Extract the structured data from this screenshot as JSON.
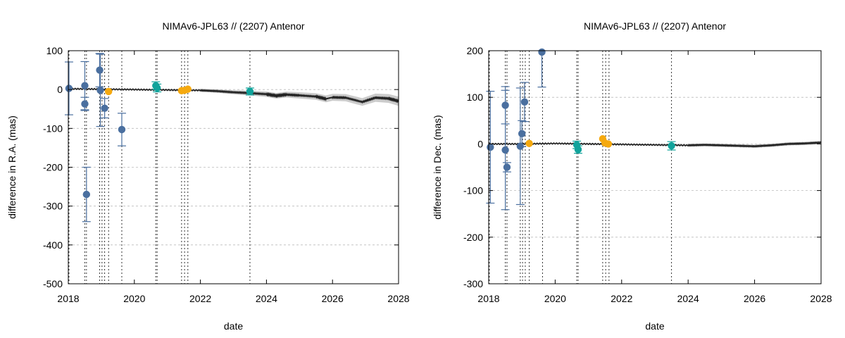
{
  "colors": {
    "blue": "#4a6f9f",
    "teal": "#10a39b",
    "orange": "#f5a90f",
    "model_line": "#222222",
    "uncertainty_band": "#cccccc",
    "grid": "#bbbbbb",
    "vline": "#333333"
  },
  "chart_data": [
    {
      "type": "scatter",
      "title": "NIMAv6-JPL63 // (2207) Antenor",
      "xlabel": "date",
      "ylabel": "difference in R.A. (mas)",
      "xlim": [
        2018,
        2028
      ],
      "ylim": [
        -500,
        100
      ],
      "xticks": [
        2018,
        2020,
        2022,
        2024,
        2026,
        2028
      ],
      "yticks": [
        -500,
        -400,
        -300,
        -200,
        -100,
        0,
        100
      ],
      "grid": "horizontal dashed",
      "observation_dates": [
        2018.02,
        2018.5,
        2018.55,
        2018.95,
        2019.02,
        2019.1,
        2019.22,
        2019.62,
        2020.65,
        2020.69,
        2021.43,
        2021.52,
        2021.62,
        2023.5
      ],
      "series": [
        {
          "color": "blue",
          "points": [
            {
              "x": 2018.02,
              "y": 3,
              "err": 68
            },
            {
              "x": 2018.5,
              "y": 10,
              "err": 62
            },
            {
              "x": 2018.5,
              "y": -37,
              "err": 17
            },
            {
              "x": 2018.55,
              "y": -270,
              "err": 70
            },
            {
              "x": 2018.95,
              "y": 50,
              "err": 43
            },
            {
              "x": 2018.97,
              "y": -2,
              "err": 93
            },
            {
              "x": 2019.1,
              "y": -48,
              "err": 25
            },
            {
              "x": 2019.62,
              "y": -103,
              "err": 42
            }
          ]
        },
        {
          "color": "teal",
          "points": [
            {
              "x": 2020.65,
              "y": 10,
              "err": 10
            },
            {
              "x": 2020.69,
              "y": 4,
              "err": 10
            },
            {
              "x": 2023.5,
              "y": -5,
              "err": 9
            }
          ]
        },
        {
          "color": "orange",
          "points": [
            {
              "x": 2019.22,
              "y": -5,
              "err": 0
            },
            {
              "x": 2021.43,
              "y": -3,
              "err": 0
            },
            {
              "x": 2021.52,
              "y": -2,
              "err": 0
            },
            {
              "x": 2021.62,
              "y": 1,
              "err": 0
            }
          ]
        }
      ],
      "model_curve": [
        [
          2018,
          2
        ],
        [
          2019,
          1
        ],
        [
          2020,
          0
        ],
        [
          2021,
          -1
        ],
        [
          2022,
          -2
        ],
        [
          2022.5,
          -4
        ],
        [
          2023,
          -7
        ],
        [
          2023.5,
          -9
        ],
        [
          2024,
          -12
        ],
        [
          2024.3,
          -16
        ],
        [
          2024.6,
          -13
        ],
        [
          2025,
          -15
        ],
        [
          2025.5,
          -18
        ],
        [
          2025.8,
          -24
        ],
        [
          2026,
          -20
        ],
        [
          2026.4,
          -21
        ],
        [
          2026.9,
          -32
        ],
        [
          2027.3,
          -21
        ],
        [
          2027.7,
          -23
        ],
        [
          2028,
          -30
        ]
      ],
      "band_halfwidth": [
        [
          2018,
          1
        ],
        [
          2020,
          2
        ],
        [
          2022,
          3
        ],
        [
          2023,
          5
        ],
        [
          2024,
          7
        ],
        [
          2025,
          8
        ],
        [
          2026,
          9
        ],
        [
          2027,
          10
        ],
        [
          2028,
          12
        ]
      ]
    },
    {
      "type": "scatter",
      "title": "NIMAv6-JPL63 // (2207) Antenor",
      "xlabel": "date",
      "ylabel": "difference in Dec. (mas)",
      "xlim": [
        2018,
        2028
      ],
      "ylim": [
        -300,
        200
      ],
      "xticks": [
        2018,
        2020,
        2022,
        2024,
        2026,
        2028
      ],
      "yticks": [
        -300,
        -200,
        -100,
        0,
        100,
        200
      ],
      "grid": "horizontal dashed",
      "observation_dates": [
        2018.02,
        2018.5,
        2018.55,
        2018.95,
        2019.02,
        2019.1,
        2019.22,
        2019.62,
        2020.65,
        2020.69,
        2021.43,
        2021.52,
        2021.62,
        2023.5
      ],
      "series": [
        {
          "color": "blue",
          "points": [
            {
              "x": 2018.05,
              "y": -7,
              "err": 120
            },
            {
              "x": 2018.5,
              "y": 83,
              "err": 40
            },
            {
              "x": 2018.5,
              "y": -13,
              "err": 128
            },
            {
              "x": 2018.55,
              "y": -50,
              "err": 10
            },
            {
              "x": 2018.95,
              "y": -5,
              "err": 125
            },
            {
              "x": 2019.0,
              "y": 22,
              "err": 28
            },
            {
              "x": 2019.08,
              "y": 90,
              "err": 42
            },
            {
              "x": 2019.6,
              "y": 197,
              "err": 75
            }
          ]
        },
        {
          "color": "teal",
          "points": [
            {
              "x": 2020.65,
              "y": -2,
              "err": 8
            },
            {
              "x": 2020.69,
              "y": -12,
              "err": 8
            },
            {
              "x": 2023.5,
              "y": -4,
              "err": 9
            }
          ]
        },
        {
          "color": "orange",
          "points": [
            {
              "x": 2019.22,
              "y": 1,
              "err": 0
            },
            {
              "x": 2021.43,
              "y": 11,
              "err": 0
            },
            {
              "x": 2021.5,
              "y": 2,
              "err": 0
            },
            {
              "x": 2021.6,
              "y": 0,
              "err": 0
            }
          ]
        }
      ],
      "model_curve": [
        [
          2018,
          0
        ],
        [
          2019,
          0
        ],
        [
          2020,
          1
        ],
        [
          2021,
          0
        ],
        [
          2022,
          -1
        ],
        [
          2023,
          -2
        ],
        [
          2024,
          -3
        ],
        [
          2024.5,
          -2
        ],
        [
          2025,
          -3
        ],
        [
          2025.5,
          -4
        ],
        [
          2026,
          -5
        ],
        [
          2026.5,
          -3
        ],
        [
          2027,
          0
        ],
        [
          2027.5,
          1
        ],
        [
          2028,
          3
        ]
      ],
      "band_halfwidth": [
        [
          2018,
          1
        ],
        [
          2028,
          3
        ]
      ]
    }
  ]
}
